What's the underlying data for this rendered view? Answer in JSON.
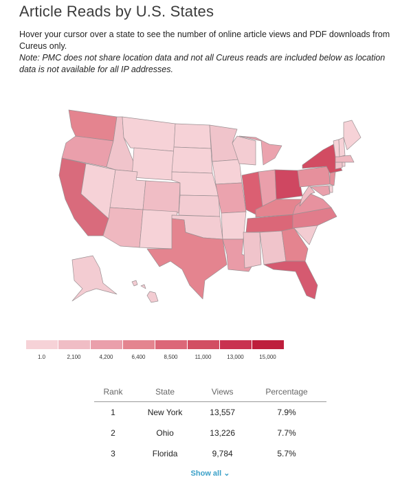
{
  "header": {
    "title": "Article Reads by U.S. States",
    "description": "Hover your cursor over a state to see the number of online article views and PDF downloads from Cureus only.",
    "note": "Note: PMC does not share location data and not all Cureus reads are included below as location data is not available for all IP addresses."
  },
  "legend": {
    "labels": [
      "1.0",
      "2,100",
      "4,200",
      "6,400",
      "8,500",
      "11,000",
      "13,000",
      "15,000"
    ],
    "colors": [
      "#f6d2d7",
      "#f0bdc5",
      "#ea9fab",
      "#e4848f",
      "#dc6778",
      "#d24e62",
      "#c93250",
      "#be1e3c"
    ]
  },
  "table": {
    "headers": [
      "Rank",
      "State",
      "Views",
      "Percentage"
    ],
    "rows": [
      {
        "rank": "1",
        "state": "New York",
        "views": "13,557",
        "percentage": "7.9%"
      },
      {
        "rank": "2",
        "state": "Ohio",
        "views": "13,226",
        "percentage": "7.7%"
      },
      {
        "rank": "3",
        "state": "Florida",
        "views": "9,784",
        "percentage": "5.7%"
      }
    ]
  },
  "show_all": {
    "label": "Show all",
    "icon": "chevron-down-icon"
  }
}
